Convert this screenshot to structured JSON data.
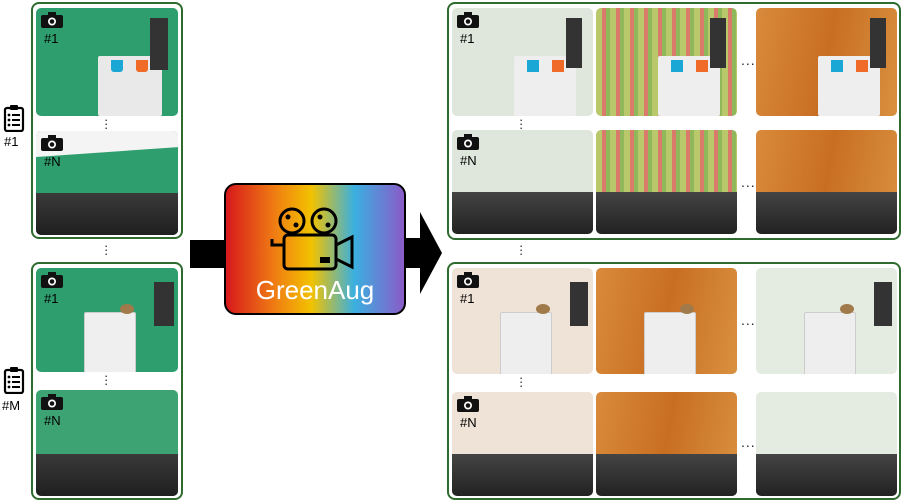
{
  "colors": {
    "group_border": "#2e6b2e",
    "green_screen": "#2f9e6e",
    "arrow": "#000000",
    "gradient": [
      "#d7191c",
      "#f07f12",
      "#f2c200",
      "#3ab0e0",
      "#8a5bc8"
    ]
  },
  "input_groups": [
    {
      "id": "#1",
      "clip_label": "#1",
      "cams": [
        {
          "label": "#1",
          "scene": "cups"
        },
        {
          "label": "#N",
          "scene": "rail"
        }
      ]
    },
    {
      "id": "#M",
      "clip_label": "#M",
      "cams": [
        {
          "label": "#1",
          "scene": "drawer"
        },
        {
          "label": "#N",
          "scene": "rail"
        }
      ]
    }
  ],
  "center": {
    "label": "GreenAug",
    "icon": "movie-camera-icon"
  },
  "output_groups": [
    {
      "rows": [
        {
          "label": "#1",
          "scene": "cups",
          "backgrounds": [
            "fabric-white",
            "stripes-green",
            "wood-orange"
          ]
        },
        {
          "label": "#N",
          "scene": "rail",
          "backgrounds": [
            "fabric-white",
            "stripes-green",
            "wood-orange"
          ]
        }
      ]
    },
    {
      "rows": [
        {
          "label": "#1",
          "scene": "drawer",
          "backgrounds": [
            "fabric-cream",
            "wood-orange",
            "fabric-white"
          ]
        },
        {
          "label": "#N",
          "scene": "rail",
          "backgrounds": [
            "fabric-cream",
            "wood-orange",
            "fabric-white"
          ]
        }
      ]
    }
  ],
  "ellipsis": "..."
}
